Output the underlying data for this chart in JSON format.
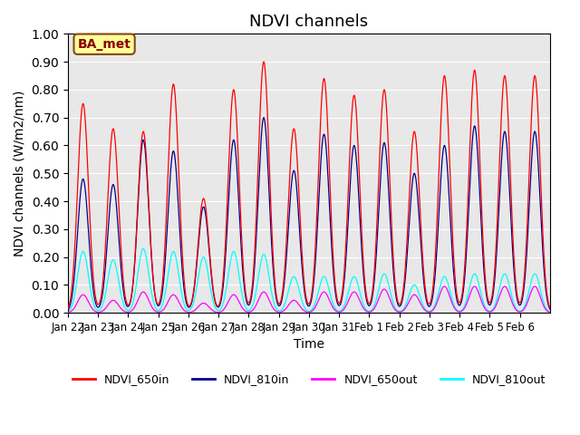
{
  "title": "NDVI channels",
  "xlabel": "Time",
  "ylabel": "NDVI channels (W/m2/nm)",
  "ylim": [
    0.0,
    1.0
  ],
  "yticks": [
    0.0,
    0.1,
    0.2,
    0.3,
    0.4,
    0.5,
    0.6,
    0.7,
    0.8,
    0.9,
    1.0
  ],
  "xtick_labels": [
    "Jan 22",
    "Jan 23",
    "Jan 24",
    "Jan 25",
    "Jan 26",
    "Jan 27",
    "Jan 28",
    "Jan 29",
    "Jan 30",
    "Jan 31",
    "Feb 1",
    "Feb 2",
    "Feb 3",
    "Feb 4",
    "Feb 5",
    "Feb 6"
  ],
  "annotation_text": "BA_met",
  "annotation_color": "#8B0000",
  "annotation_bg": "#FFFF99",
  "annotation_border": "#8B4513",
  "colors": {
    "NDVI_650in": "#FF0000",
    "NDVI_810in": "#00008B",
    "NDVI_650out": "#FF00FF",
    "NDVI_810out": "#00FFFF"
  },
  "legend_labels": [
    "NDVI_650in",
    "NDVI_810in",
    "NDVI_650out",
    "NDVI_810out"
  ],
  "bg_color": "#E8E8E8",
  "grid_color": "white",
  "title_fontsize": 13,
  "axis_fontsize": 10,
  "n_days": 16,
  "peaks_650in": [
    0.75,
    0.66,
    0.65,
    0.82,
    0.41,
    0.8,
    0.9,
    0.66,
    0.84,
    0.78,
    0.8,
    0.65,
    0.85,
    0.87,
    0.85,
    0.85
  ],
  "peaks_810in": [
    0.48,
    0.46,
    0.62,
    0.58,
    0.38,
    0.62,
    0.7,
    0.51,
    0.64,
    0.6,
    0.61,
    0.5,
    0.6,
    0.67,
    0.65,
    0.65
  ],
  "peaks_650out": [
    0.065,
    0.045,
    0.075,
    0.065,
    0.035,
    0.065,
    0.075,
    0.045,
    0.075,
    0.075,
    0.085,
    0.065,
    0.095,
    0.095,
    0.095,
    0.095
  ],
  "peaks_810out": [
    0.22,
    0.19,
    0.23,
    0.22,
    0.2,
    0.22,
    0.21,
    0.13,
    0.13,
    0.13,
    0.14,
    0.1,
    0.13,
    0.14,
    0.14,
    0.14
  ]
}
